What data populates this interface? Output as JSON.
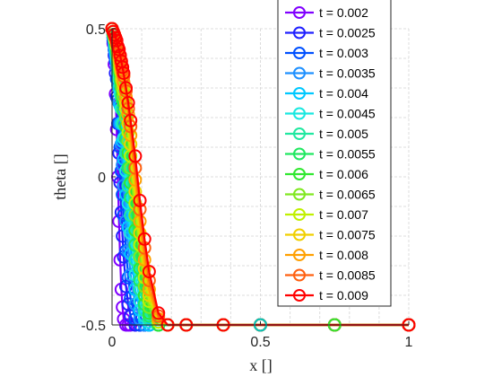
{
  "chart_data": {
    "type": "line",
    "xlabel": "x []",
    "ylabel": "theta []",
    "xlim": [
      0,
      1
    ],
    "ylim": [
      -0.5,
      0.5
    ],
    "xticks": [
      "0",
      "0.5",
      "1"
    ],
    "yticks": [
      "-0.5",
      "0",
      "0.5"
    ],
    "grid": true,
    "legend_position": "top-right",
    "x": [
      0,
      0.0039,
      0.0078,
      0.0117,
      0.0156,
      0.0195,
      0.0234,
      0.0273,
      0.0313,
      0.0352,
      0.0391,
      0.0469,
      0.0547,
      0.0625,
      0.0781,
      0.0938,
      0.1094,
      0.125,
      0.1563,
      0.1875,
      0.25,
      0.375,
      0.5,
      0.75,
      1.0
    ],
    "series": [
      {
        "name": "t = 0.002",
        "color": "#8000ff",
        "values": [
          0.5,
          0.45,
          0.38,
          0.28,
          0.16,
          0.0,
          -0.15,
          -0.28,
          -0.38,
          -0.44,
          -0.48,
          -0.5,
          -0.5,
          -0.5,
          -0.5,
          -0.5,
          -0.5,
          -0.5,
          -0.5,
          -0.5,
          -0.5,
          -0.5,
          -0.5,
          -0.5,
          -0.5
        ]
      },
      {
        "name": "t = 0.0025",
        "color": "#2020ff",
        "values": [
          0.5,
          0.46,
          0.41,
          0.35,
          0.27,
          0.18,
          0.08,
          -0.02,
          -0.12,
          -0.2,
          -0.27,
          -0.37,
          -0.43,
          -0.47,
          -0.5,
          -0.5,
          -0.5,
          -0.5,
          -0.5,
          -0.5,
          -0.5,
          -0.5,
          -0.5,
          -0.5,
          -0.5
        ]
      },
      {
        "name": "t = 0.003",
        "color": "#0050ff",
        "values": [
          0.5,
          0.47,
          0.43,
          0.39,
          0.33,
          0.26,
          0.18,
          0.1,
          0.02,
          -0.06,
          -0.13,
          -0.25,
          -0.34,
          -0.41,
          -0.48,
          -0.5,
          -0.5,
          -0.5,
          -0.5,
          -0.5,
          -0.5,
          -0.5,
          -0.5,
          -0.5,
          -0.5
        ]
      },
      {
        "name": "t = 0.0035",
        "color": "#1e90ff",
        "values": [
          0.5,
          0.47,
          0.44,
          0.41,
          0.37,
          0.31,
          0.25,
          0.18,
          0.11,
          0.04,
          -0.03,
          -0.15,
          -0.25,
          -0.33,
          -0.43,
          -0.48,
          -0.5,
          -0.5,
          -0.5,
          -0.5,
          -0.5,
          -0.5,
          -0.5,
          -0.5,
          -0.5
        ]
      },
      {
        "name": "t = 0.004",
        "color": "#00c8ff",
        "values": [
          0.5,
          0.48,
          0.45,
          0.42,
          0.39,
          0.35,
          0.3,
          0.24,
          0.18,
          0.12,
          0.06,
          -0.06,
          -0.17,
          -0.26,
          -0.38,
          -0.45,
          -0.48,
          -0.5,
          -0.5,
          -0.5,
          -0.5,
          -0.5,
          -0.5,
          -0.5,
          -0.5
        ]
      },
      {
        "name": "t = 0.0045",
        "color": "#1ae8e0",
        "values": [
          0.5,
          0.48,
          0.46,
          0.43,
          0.4,
          0.37,
          0.33,
          0.28,
          0.23,
          0.18,
          0.13,
          0.02,
          -0.09,
          -0.19,
          -0.33,
          -0.42,
          -0.47,
          -0.49,
          -0.5,
          -0.5,
          -0.5,
          -0.5,
          -0.5,
          -0.5,
          -0.5
        ]
      },
      {
        "name": "t = 0.005",
        "color": "#20e8a0",
        "values": [
          0.5,
          0.48,
          0.46,
          0.44,
          0.41,
          0.38,
          0.35,
          0.31,
          0.27,
          0.23,
          0.18,
          0.08,
          -0.03,
          -0.13,
          -0.28,
          -0.38,
          -0.45,
          -0.48,
          -0.5,
          -0.5,
          -0.5,
          -0.5,
          -0.5,
          -0.5,
          -0.5
        ]
      },
      {
        "name": "t = 0.0055",
        "color": "#20e860",
        "values": [
          0.5,
          0.48,
          0.47,
          0.45,
          0.42,
          0.39,
          0.36,
          0.33,
          0.3,
          0.26,
          0.22,
          0.13,
          0.03,
          -0.07,
          -0.23,
          -0.35,
          -0.43,
          -0.47,
          -0.5,
          -0.5,
          -0.5,
          -0.5,
          -0.5,
          -0.5,
          -0.5
        ]
      },
      {
        "name": "t = 0.006",
        "color": "#30e830",
        "values": [
          0.5,
          0.49,
          0.47,
          0.45,
          0.43,
          0.4,
          0.38,
          0.35,
          0.32,
          0.28,
          0.25,
          0.17,
          0.08,
          -0.02,
          -0.18,
          -0.31,
          -0.4,
          -0.46,
          -0.5,
          -0.5,
          -0.5,
          -0.5,
          -0.5,
          -0.5,
          -0.5
        ]
      },
      {
        "name": "t = 0.0065",
        "color": "#80e820",
        "values": [
          0.5,
          0.49,
          0.47,
          0.46,
          0.44,
          0.41,
          0.39,
          0.36,
          0.33,
          0.3,
          0.27,
          0.2,
          0.12,
          0.03,
          -0.13,
          -0.27,
          -0.37,
          -0.44,
          -0.49,
          -0.5,
          -0.5,
          -0.5,
          -0.5,
          -0.5,
          -0.5
        ]
      },
      {
        "name": "t = 0.007",
        "color": "#c0f000",
        "values": [
          0.5,
          0.49,
          0.48,
          0.46,
          0.44,
          0.42,
          0.4,
          0.37,
          0.35,
          0.32,
          0.29,
          0.23,
          0.15,
          0.07,
          -0.09,
          -0.23,
          -0.34,
          -0.42,
          -0.49,
          -0.5,
          -0.5,
          -0.5,
          -0.5,
          -0.5,
          -0.5
        ]
      },
      {
        "name": "t = 0.0075",
        "color": "#f0d000",
        "values": [
          0.5,
          0.49,
          0.48,
          0.46,
          0.45,
          0.43,
          0.41,
          0.38,
          0.36,
          0.33,
          0.31,
          0.25,
          0.18,
          0.11,
          -0.05,
          -0.19,
          -0.31,
          -0.4,
          -0.48,
          -0.5,
          -0.5,
          -0.5,
          -0.5,
          -0.5,
          -0.5
        ]
      },
      {
        "name": "t = 0.008",
        "color": "#ffa000",
        "values": [
          0.5,
          0.49,
          0.48,
          0.47,
          0.45,
          0.43,
          0.41,
          0.39,
          0.37,
          0.35,
          0.32,
          0.27,
          0.21,
          0.14,
          -0.01,
          -0.15,
          -0.28,
          -0.38,
          -0.48,
          -0.5,
          -0.5,
          -0.5,
          -0.5,
          -0.5,
          -0.5
        ]
      },
      {
        "name": "t = 0.0085",
        "color": "#ff6010",
        "values": [
          0.5,
          0.49,
          0.48,
          0.47,
          0.45,
          0.44,
          0.42,
          0.4,
          0.38,
          0.36,
          0.34,
          0.29,
          0.23,
          0.17,
          0.03,
          -0.11,
          -0.24,
          -0.35,
          -0.47,
          -0.5,
          -0.5,
          -0.5,
          -0.5,
          -0.5,
          -0.5
        ]
      },
      {
        "name": "t = 0.009",
        "color": "#ff0000",
        "values": [
          0.5,
          0.49,
          0.48,
          0.47,
          0.46,
          0.44,
          0.43,
          0.41,
          0.39,
          0.37,
          0.35,
          0.3,
          0.25,
          0.19,
          0.07,
          -0.08,
          -0.21,
          -0.32,
          -0.46,
          -0.5,
          -0.5,
          -0.5,
          -0.5,
          -0.5,
          -0.5
        ]
      }
    ],
    "extra_markers": [
      {
        "x": 0.75,
        "y": -0.5,
        "color": "#30e830"
      },
      {
        "x": 1.0,
        "y": -0.5,
        "color": "#ff0000"
      },
      {
        "x": 0.5,
        "y": -0.5,
        "color": "#00c8c0"
      }
    ]
  }
}
